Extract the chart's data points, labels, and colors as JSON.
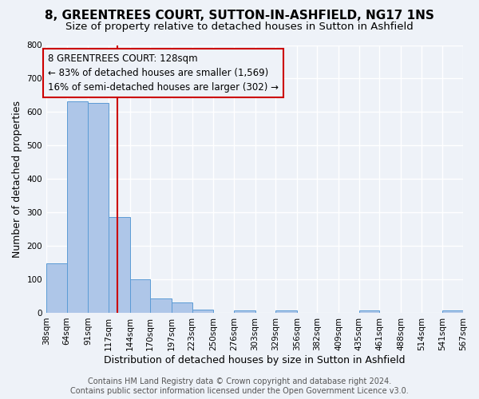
{
  "title": "8, GREENTREES COURT, SUTTON-IN-ASHFIELD, NG17 1NS",
  "subtitle": "Size of property relative to detached houses in Sutton in Ashfield",
  "xlabel": "Distribution of detached houses by size in Sutton in Ashfield",
  "ylabel": "Number of detached properties",
  "bar_values": [
    148,
    632,
    627,
    287,
    100,
    44,
    30,
    10,
    0,
    7,
    0,
    7,
    0,
    0,
    0,
    7,
    0,
    0,
    0,
    7
  ],
  "bin_edges": [
    38,
    64,
    91,
    117,
    144,
    170,
    197,
    223,
    250,
    276,
    303,
    329,
    356,
    382,
    409,
    435,
    461,
    488,
    514,
    541,
    567
  ],
  "tick_labels": [
    "38sqm",
    "64sqm",
    "91sqm",
    "117sqm",
    "144sqm",
    "170sqm",
    "197sqm",
    "223sqm",
    "250sqm",
    "276sqm",
    "303sqm",
    "329sqm",
    "356sqm",
    "382sqm",
    "409sqm",
    "435sqm",
    "461sqm",
    "488sqm",
    "514sqm",
    "541sqm",
    "567sqm"
  ],
  "bar_color": "#aec6e8",
  "bar_edge_color": "#5b9bd5",
  "vline_x": 128,
  "vline_color": "#cc0000",
  "annotation_title": "8 GREENTREES COURT: 128sqm",
  "annotation_line1": "← 83% of detached houses are smaller (1,569)",
  "annotation_line2": "16% of semi-detached houses are larger (302) →",
  "annotation_box_color": "#cc0000",
  "ylim": [
    0,
    800
  ],
  "yticks": [
    0,
    100,
    200,
    300,
    400,
    500,
    600,
    700,
    800
  ],
  "footer_line1": "Contains HM Land Registry data © Crown copyright and database right 2024.",
  "footer_line2": "Contains public sector information licensed under the Open Government Licence v3.0.",
  "bg_color": "#eef2f8",
  "grid_color": "#ffffff",
  "title_fontsize": 11,
  "subtitle_fontsize": 9.5,
  "axis_label_fontsize": 9,
  "tick_fontsize": 7.5,
  "annotation_fontsize": 8.5,
  "footer_fontsize": 7
}
